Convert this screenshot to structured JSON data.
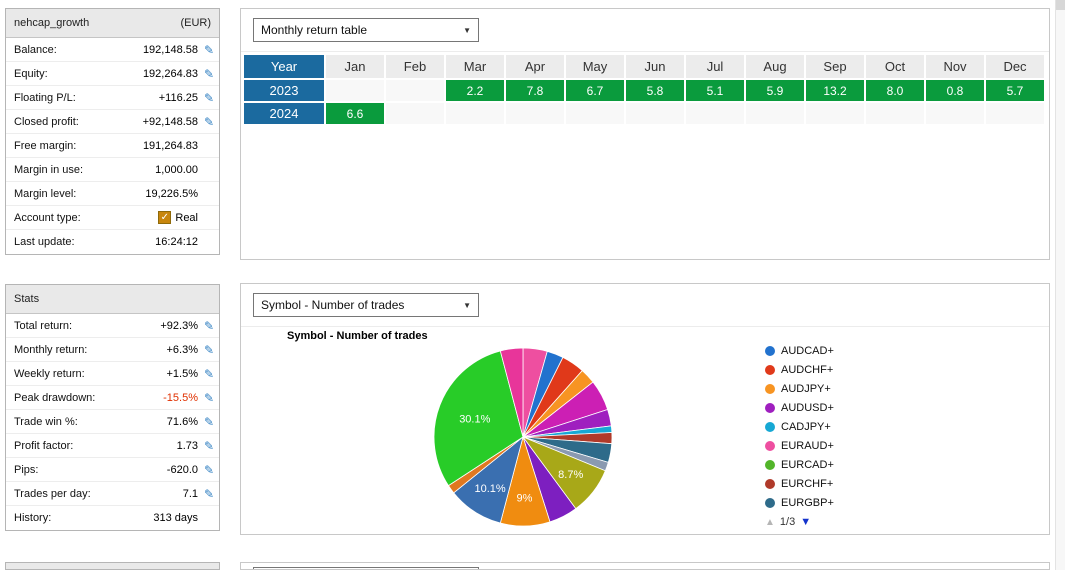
{
  "left": {
    "account_panel": {
      "title": "nehcap_growth",
      "currency": "(EUR)",
      "rows": [
        {
          "label": "Balance:",
          "value": "192,148.58",
          "edit": true
        },
        {
          "label": "Equity:",
          "value": "192,264.83",
          "edit": true
        },
        {
          "label": "Floating P/L:",
          "value": "+116.25",
          "edit": true
        },
        {
          "label": "Closed profit:",
          "value": "+92,148.58",
          "edit": true
        },
        {
          "label": "Free margin:",
          "value": "191,264.83",
          "edit": false
        },
        {
          "label": "Margin in use:",
          "value": "1,000.00",
          "edit": false
        },
        {
          "label": "Margin level:",
          "value": "19,226.5%",
          "edit": false
        },
        {
          "label": "Account type:",
          "value": "Real",
          "edit": false,
          "checkbox": true
        },
        {
          "label": "Last update:",
          "value": "16:24:12",
          "edit": false
        }
      ]
    },
    "stats_panel": {
      "title": "Stats",
      "rows": [
        {
          "label": "Total return:",
          "value": "+92.3%",
          "edit": true
        },
        {
          "label": "Monthly return:",
          "value": "+6.3%",
          "edit": true
        },
        {
          "label": "Weekly return:",
          "value": "+1.5%",
          "edit": true
        },
        {
          "label": "Peak drawdown:",
          "value": "-15.5%",
          "edit": true,
          "negative": true
        },
        {
          "label": "Trade win %:",
          "value": "71.6%",
          "edit": true
        },
        {
          "label": "Profit factor:",
          "value": "1.73",
          "edit": true
        },
        {
          "label": "Pips:",
          "value": "-620.0",
          "edit": true
        },
        {
          "label": "Trades per day:",
          "value": "7.1",
          "edit": true
        },
        {
          "label": "History:",
          "value": "313 days",
          "edit": false
        }
      ]
    }
  },
  "main": {
    "monthly_panel": {
      "selector": "Monthly return table"
    },
    "symbol_panel": {
      "selector": "Symbol - Number of trades",
      "chart_title": "Symbol - Number of trades",
      "pagination": "1/3"
    }
  },
  "colors": {
    "table_year_bg": "#1b6a9f",
    "table_value_bg": "#0a9b3d",
    "negative_text": "#e03000",
    "edit_icon": "#2f7fc1",
    "checkbox_bg": "#c8860d"
  },
  "chart_data": [
    {
      "type": "table",
      "title": "Monthly return table",
      "units": "monthly return %",
      "columns": [
        "Year",
        "Jan",
        "Feb",
        "Mar",
        "Apr",
        "May",
        "Jun",
        "Jul",
        "Aug",
        "Sep",
        "Oct",
        "Nov",
        "Dec"
      ],
      "rows": [
        {
          "year": "2023",
          "values": [
            null,
            null,
            2.2,
            7.8,
            6.7,
            5.8,
            5.1,
            5.9,
            13.2,
            8.0,
            0.8,
            5.7
          ]
        },
        {
          "year": "2024",
          "values": [
            6.6,
            null,
            null,
            null,
            null,
            null,
            null,
            null,
            null,
            null,
            null,
            null
          ]
        }
      ]
    },
    {
      "type": "pie",
      "title": "Symbol - Number of trades",
      "slices": [
        {
          "value": 4.4,
          "color": "#ee4fa0"
        },
        {
          "value": 3.0,
          "color": "#2272ce"
        },
        {
          "value": 4.2,
          "color": "#e0391a"
        },
        {
          "value": 2.8,
          "color": "#f79422"
        },
        {
          "value": 5.6,
          "color": "#cc1fb4"
        },
        {
          "value": 3.0,
          "color": "#9f1fbf"
        },
        {
          "value": 1.2,
          "color": "#17a8d4"
        },
        {
          "value": 2.0,
          "color": "#b03a2a"
        },
        {
          "value": 3.4,
          "color": "#2e6b8a"
        },
        {
          "value": 1.6,
          "color": "#8a9ab0"
        },
        {
          "value": 8.7,
          "color": "#a8a818",
          "label": "8.7%"
        },
        {
          "value": 5.2,
          "color": "#7d1fc0"
        },
        {
          "value": 9.0,
          "color": "#f08c10",
          "label": "9%"
        },
        {
          "value": 10.1,
          "color": "#3a6fb0",
          "label": "10.1%"
        },
        {
          "value": 1.6,
          "color": "#e07820"
        },
        {
          "value": 30.1,
          "color": "#28cc28",
          "label": "30.1%"
        },
        {
          "value": 4.1,
          "color": "#e8359a"
        }
      ],
      "legend_position": "right",
      "legend_page": "1/3",
      "legend": [
        {
          "label": "AUDCAD+",
          "color": "#2272ce"
        },
        {
          "label": "AUDCHF+",
          "color": "#e0391a"
        },
        {
          "label": "AUDJPY+",
          "color": "#f79422"
        },
        {
          "label": "AUDUSD+",
          "color": "#9f1fbf"
        },
        {
          "label": "CADJPY+",
          "color": "#17a8d4"
        },
        {
          "label": "EURAUD+",
          "color": "#ee4fa0"
        },
        {
          "label": "EURCAD+",
          "color": "#52b52a"
        },
        {
          "label": "EURCHF+",
          "color": "#b03a2a"
        },
        {
          "label": "EURGBP+",
          "color": "#2e6b8a"
        }
      ]
    }
  ]
}
